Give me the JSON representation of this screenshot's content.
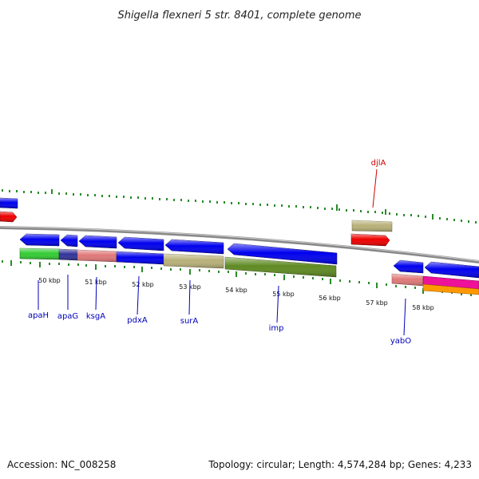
{
  "title": "Shigella flexneri 5 str. 8401, complete genome",
  "footer": {
    "accession": "Accession: NC_008258",
    "topology": "Topology: circular; Length: 4,574,284 bp; Genes: 4,233"
  },
  "kbp_labels": [
    "50 kbp",
    "51 kbp",
    "52 kbp",
    "53 kbp",
    "54 kbp",
    "55 kbp",
    "56 kbp",
    "57 kbp",
    "58 kbp"
  ],
  "genes": [
    {
      "name": "apaH",
      "color": "#0000bb"
    },
    {
      "name": "apaG",
      "color": "#0000bb"
    },
    {
      "name": "ksgA",
      "color": "#0000bb"
    },
    {
      "name": "pdxA",
      "color": "#0000bb"
    },
    {
      "name": "surA",
      "color": "#0000bb"
    },
    {
      "name": "imp",
      "color": "#0000bb"
    },
    {
      "name": "djlA",
      "color": "#cc0000"
    },
    {
      "name": "yabO",
      "color": "#0000bb"
    }
  ],
  "colors": {
    "backbone": "#888888",
    "tick": "#2a8a2a",
    "gene_blue": "#0000ee",
    "gene_red": "#ee0000",
    "green": "#33cc33",
    "navy": "#333399",
    "salmon": "#e07878",
    "tan": "#b8b078",
    "olive": "#5f8a22",
    "magenta": "#ee1199",
    "orange": "#ff9900"
  }
}
